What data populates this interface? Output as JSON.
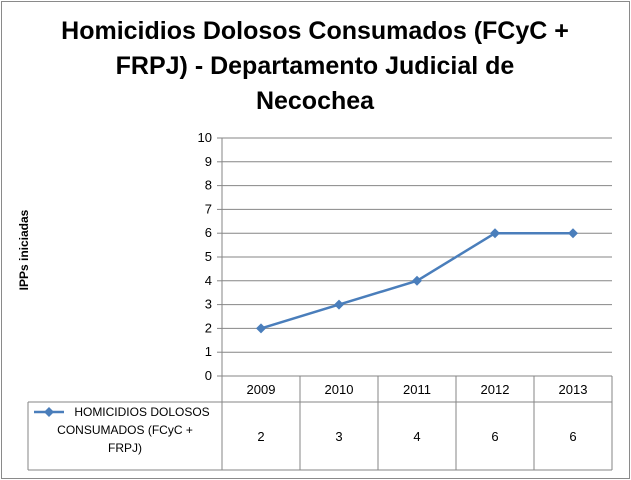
{
  "chart_data": {
    "type": "line",
    "title": "Homicidios Dolosos Consumados (FCyC + FRPJ) - Departamento Judicial de Necochea",
    "title_lines": [
      "Homicidios Dolosos Consumados (FCyC +",
      "FRPJ) - Departamento Judicial de",
      "Necochea"
    ],
    "xlabel": "",
    "ylabel": "IPPs iniciadas",
    "categories": [
      "2009",
      "2010",
      "2011",
      "2012",
      "2013"
    ],
    "yticks": [
      "0",
      "1",
      "2",
      "3",
      "4",
      "5",
      "6",
      "7",
      "8",
      "9",
      "10"
    ],
    "ylim": [
      0,
      10
    ],
    "grid": true,
    "series": [
      {
        "name": "HOMICIDIOS DOLOSOS CONSUMADOS (FCyC + FRPJ)",
        "name_lines": [
          "HOMICIDIOS DOLOSOS",
          "CONSUMADOS (FCyC +",
          "FRPJ)"
        ],
        "values": [
          2,
          3,
          4,
          6,
          6
        ],
        "value_labels": [
          "2",
          "3",
          "4",
          "6",
          "6"
        ],
        "color": "#4a7ebb"
      }
    ],
    "data_table": true
  }
}
